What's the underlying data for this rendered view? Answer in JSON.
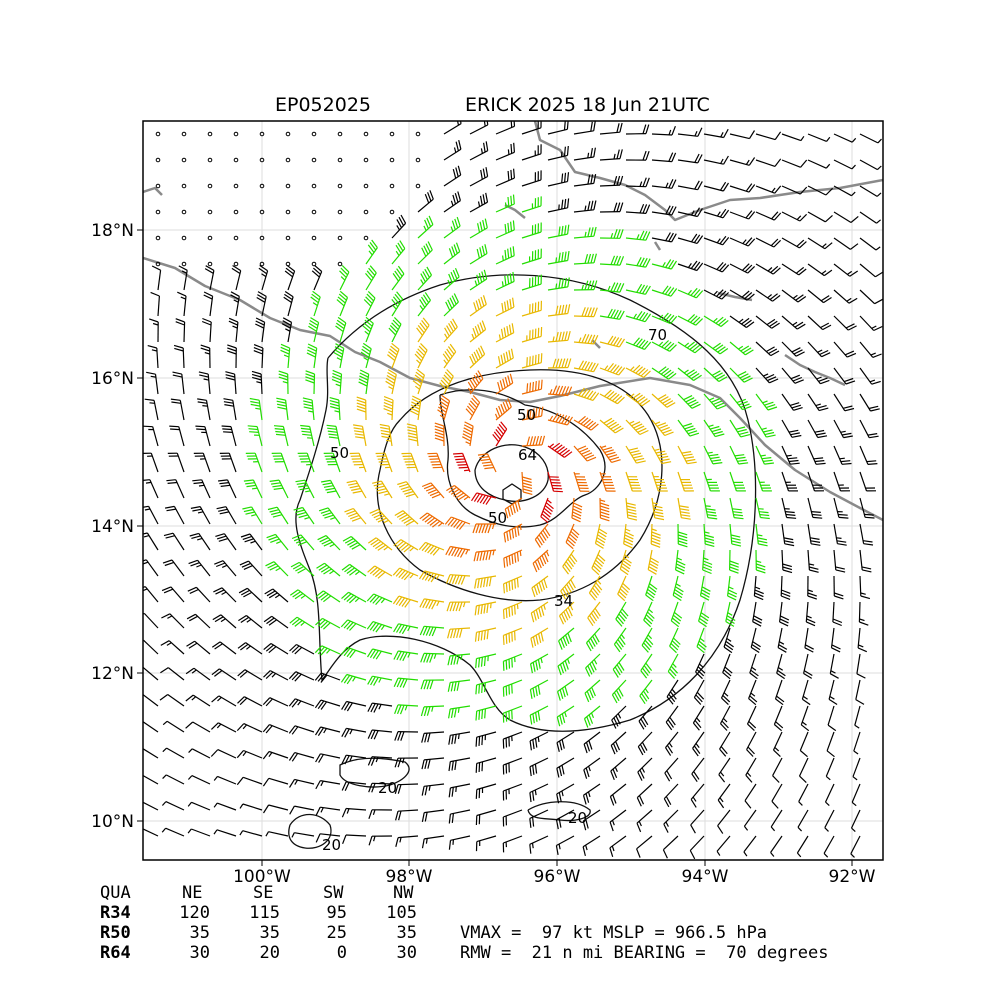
{
  "header": {
    "storm_id": "EP052025",
    "storm_title": "ERICK 2025 18 Jun 21UTC"
  },
  "map": {
    "lon_labels": [
      "100°W",
      "98°W",
      "96°W",
      "94°W",
      "92°W"
    ],
    "lat_labels": [
      "18°N",
      "16°N",
      "14°N",
      "12°N",
      "10°N"
    ],
    "contour_labels": {
      "c70": "70",
      "c50a": "50",
      "c50b": "50",
      "c64": "64",
      "c34": "34",
      "c50c": "50",
      "c20a": "20",
      "c20b": "20",
      "c20c": "20"
    },
    "colors": {
      "coast": "#8a8a8a",
      "barb_weak": "#000000",
      "barb_34": "#22dd00",
      "barb_50": "#e8b800",
      "barb_64": "#ee6a00",
      "barb_max": "#d60000"
    }
  },
  "table": {
    "headers": [
      "QUA",
      "NE",
      "SE",
      "SW",
      "NW"
    ],
    "rows": [
      {
        "label": "R34",
        "values": [
          "120",
          "115",
          "95",
          "105"
        ]
      },
      {
        "label": "R50",
        "values": [
          "35",
          "35",
          "25",
          "35"
        ]
      },
      {
        "label": "R64",
        "values": [
          "30",
          "20",
          "0",
          "30"
        ]
      }
    ]
  },
  "summary": {
    "line1": "VMAX =  97 kt MSLP = 966.5 hPa",
    "line2": "RMW =  21 n mi BEARING =  70 degrees"
  }
}
